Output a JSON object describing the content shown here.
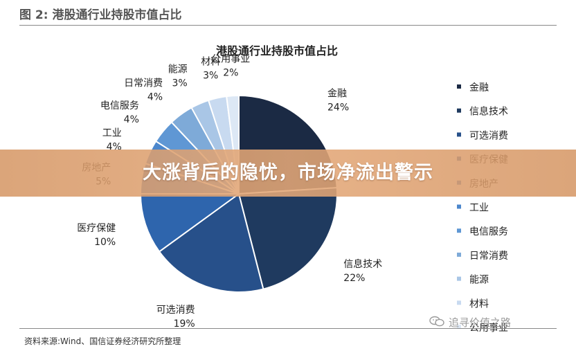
{
  "figure": {
    "label": "图 2:",
    "header_title": "港股通行业持股市值占比",
    "source": "资料来源:Wind、国信证券经济研究所整理"
  },
  "banner": {
    "title": "大涨背后的隐忧，市场净流出警示"
  },
  "watermark": {
    "icon": "wechat-icon",
    "text": "追寻价值之路"
  },
  "chart_data": {
    "type": "pie",
    "title": "港股通行业持股市值占比",
    "unit": "%",
    "legend_position": "right",
    "slices": [
      {
        "name": "金融",
        "value": 24,
        "label": "24%",
        "color": "#1b2a44"
      },
      {
        "name": "信息技术",
        "value": 22,
        "label": "22%",
        "color": "#1f3a5f"
      },
      {
        "name": "可选消费",
        "value": 19,
        "label": "19%",
        "color": "#27508a"
      },
      {
        "name": "医疗保健",
        "value": 10,
        "label": "10%",
        "color": "#2e65ad"
      },
      {
        "name": "房地产",
        "value": 5,
        "label": "5%",
        "color": "#3a78c2"
      },
      {
        "name": "工业",
        "value": 4,
        "label": "4%",
        "color": "#4c87cc"
      },
      {
        "name": "电信服务",
        "value": 4,
        "label": "4%",
        "color": "#5f97d4"
      },
      {
        "name": "日常消费",
        "value": 4,
        "label": "4%",
        "color": "#7eaad8"
      },
      {
        "name": "能源",
        "value": 3,
        "label": "3%",
        "color": "#a9c6e6"
      },
      {
        "name": "材料",
        "value": 3,
        "label": "3%",
        "color": "#c8daf0"
      },
      {
        "name": "公用事业",
        "value": 2,
        "label": "2%",
        "color": "#dde8f5"
      }
    ]
  }
}
